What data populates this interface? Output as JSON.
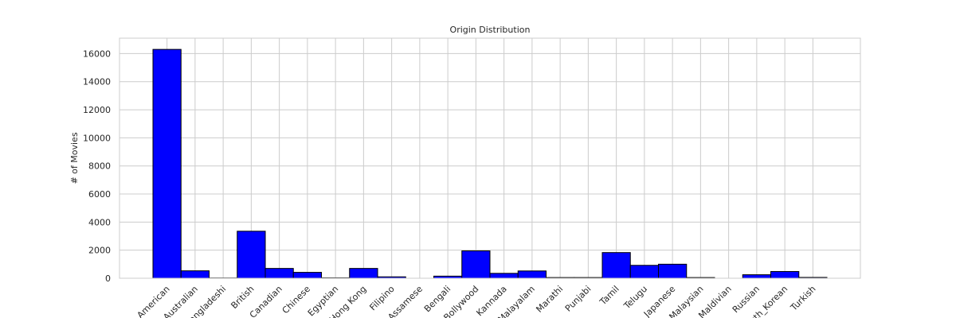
{
  "chart_data": {
    "type": "bar",
    "title": "Origin Distribution",
    "y_label": "# of Movies",
    "categories": [
      "American",
      "Australian",
      "Bangladeshi",
      "British",
      "Canadian",
      "Chinese",
      "Egyptian",
      "Hong Kong",
      "Filipino",
      "Assamese",
      "Bengali",
      "Bollywood",
      "Kannada",
      "Malayalam",
      "Marathi",
      "Punjabi",
      "Tamil",
      "Telugu",
      "Japanese",
      "Malaysian",
      "Maldivian",
      "Russian",
      "South_Korean",
      "Turkish"
    ],
    "values": [
      16300,
      530,
      20,
      3350,
      700,
      420,
      30,
      700,
      100,
      0,
      150,
      1950,
      350,
      520,
      50,
      50,
      1830,
      920,
      1000,
      50,
      0,
      250,
      480,
      60
    ],
    "color": "#0000ff",
    "edgecolor": "#000000",
    "ylim": [
      0,
      17100
    ],
    "yticks": [
      0,
      2000,
      4000,
      6000,
      8000,
      10000,
      12000,
      14000,
      16000
    ],
    "grid": true
  }
}
